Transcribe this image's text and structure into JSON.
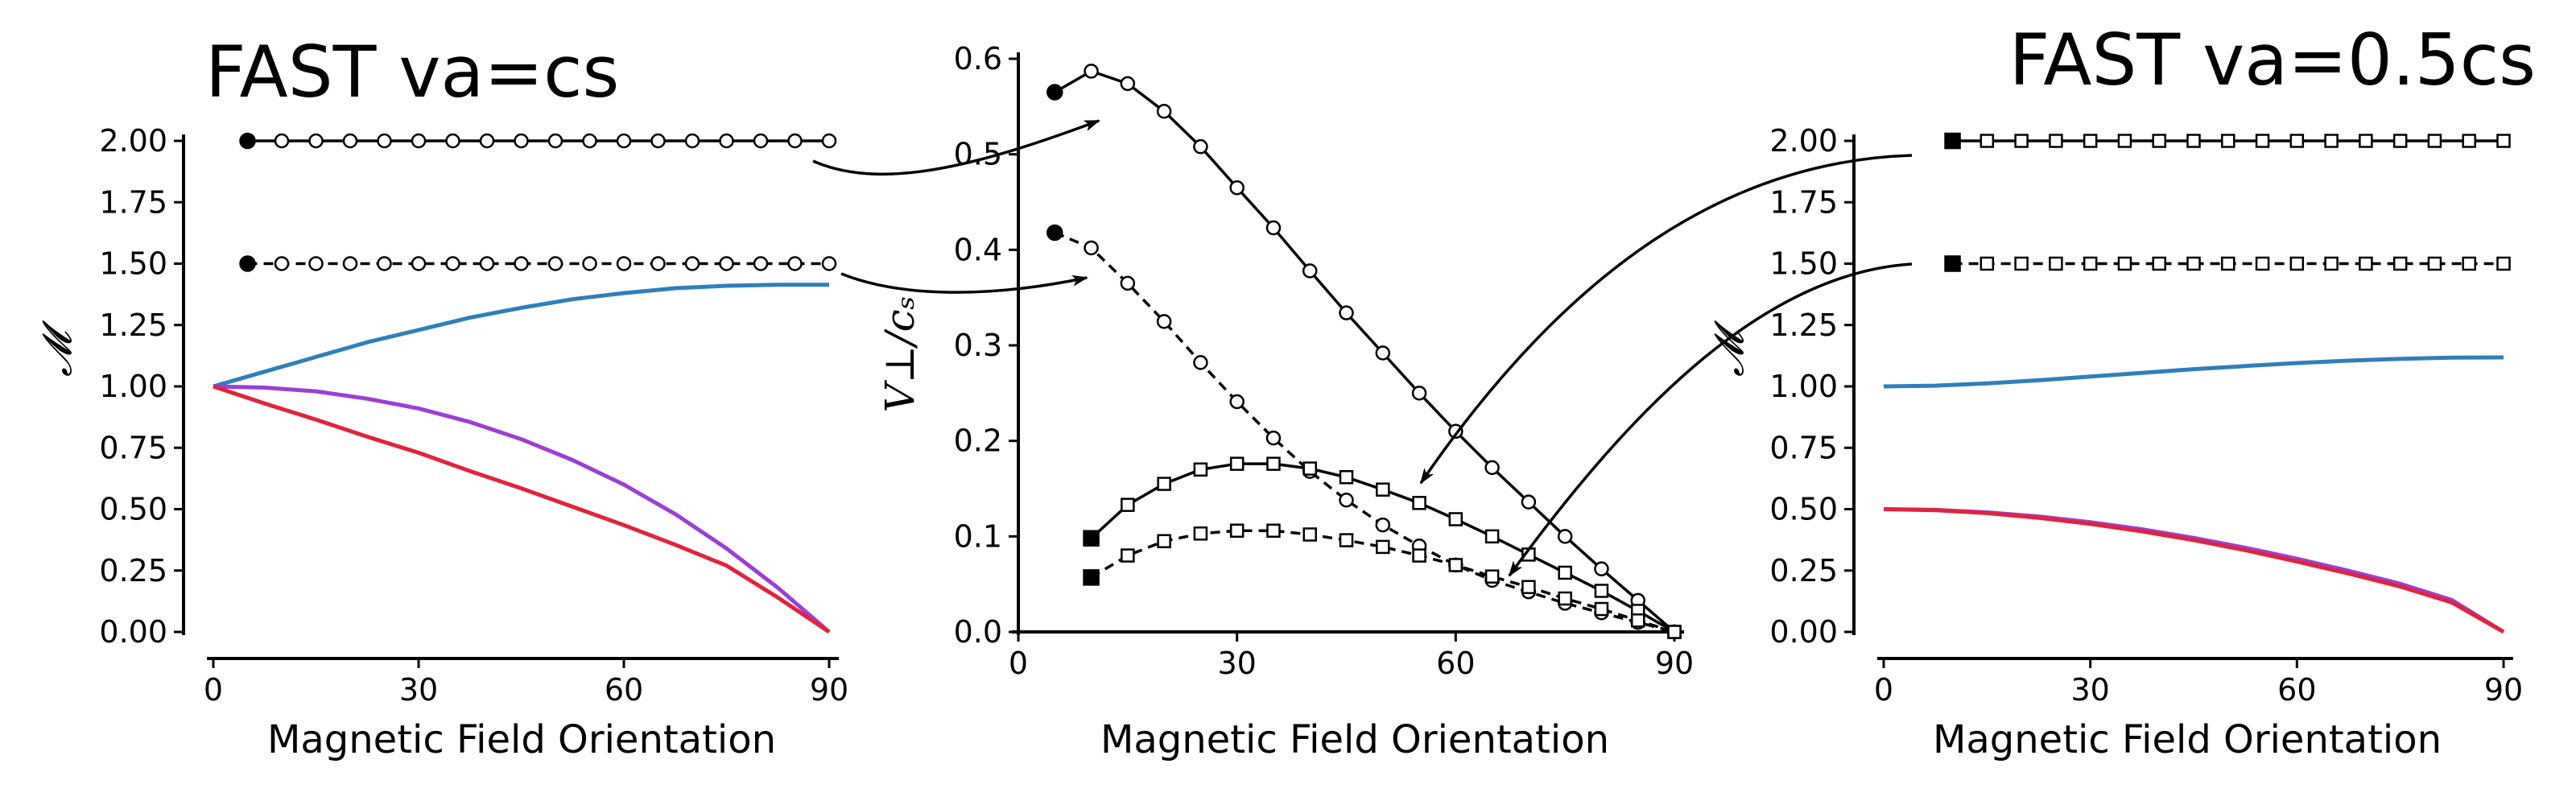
{
  "chart_data": [
    {
      "type": "line",
      "title": "FAST va=cs",
      "xlabel": "Magnetic Field Orientation",
      "ylabel": "𝓜",
      "xlim": [
        0,
        90
      ],
      "ylim": [
        0,
        2
      ],
      "xticks": [
        "0",
        "30",
        "60",
        "90"
      ],
      "yticks": [
        "0.00",
        "0.25",
        "0.50",
        "0.75",
        "1.00",
        "1.25",
        "1.50",
        "1.75",
        "2.00"
      ],
      "grid": false,
      "series": [
        {
          "x": [
            0,
            7.5,
            15,
            22.5,
            30,
            37.5,
            45,
            52.5,
            60,
            67.5,
            75,
            82.5,
            90
          ],
          "y": [
            1.0,
            1.06,
            1.12,
            1.18,
            1.23,
            1.28,
            1.32,
            1.355,
            1.38,
            1.4,
            1.41,
            1.414,
            1.414
          ],
          "color": "#2f7fba",
          "style": "solid"
        },
        {
          "x": [
            0,
            7.5,
            15,
            22.5,
            30,
            37.5,
            45,
            52.5,
            60,
            67.5,
            75,
            82.5,
            90
          ],
          "y": [
            1.0,
            0.995,
            0.98,
            0.95,
            0.91,
            0.855,
            0.785,
            0.7,
            0.6,
            0.48,
            0.34,
            0.18,
            0.0
          ],
          "color": "#9b3fd6",
          "style": "solid"
        },
        {
          "x": [
            0,
            7.5,
            15,
            22.5,
            30,
            37.5,
            45,
            52.5,
            60,
            67.5,
            75,
            82.5,
            90
          ],
          "y": [
            1.0,
            0.93,
            0.865,
            0.795,
            0.73,
            0.655,
            0.585,
            0.51,
            0.435,
            0.355,
            0.27,
            0.14,
            0.0
          ],
          "color": "#e0243c",
          "style": "solid"
        },
        {
          "x": [
            5,
            10,
            15,
            20,
            25,
            30,
            35,
            40,
            45,
            50,
            55,
            60,
            65,
            70,
            75,
            80,
            85,
            90
          ],
          "y": [
            2.0,
            2.0,
            2.0,
            2.0,
            2.0,
            2.0,
            2.0,
            2.0,
            2.0,
            2.0,
            2.0,
            2.0,
            2.0,
            2.0,
            2.0,
            2.0,
            2.0,
            2.0
          ],
          "color": "#000000",
          "style": "solid",
          "marker": "circle"
        },
        {
          "x": [
            5,
            10,
            15,
            20,
            25,
            30,
            35,
            40,
            45,
            50,
            55,
            60,
            65,
            70,
            75,
            80,
            85,
            90
          ],
          "y": [
            1.5,
            1.5,
            1.5,
            1.5,
            1.5,
            1.5,
            1.5,
            1.5,
            1.5,
            1.5,
            1.5,
            1.5,
            1.5,
            1.5,
            1.5,
            1.5,
            1.5,
            1.5
          ],
          "color": "#000000",
          "style": "dashed",
          "marker": "circle"
        }
      ]
    },
    {
      "type": "line",
      "title": "",
      "xlabel": "Magnetic Field Orientation",
      "ylabel": "V⊥/cₛ",
      "xlim": [
        0,
        90
      ],
      "ylim": [
        0,
        0.6
      ],
      "xticks": [
        "0",
        "30",
        "60",
        "90"
      ],
      "yticks": [
        "0.0",
        "0.1",
        "0.2",
        "0.3",
        "0.4",
        "0.5",
        "0.6"
      ],
      "grid": false,
      "series": [
        {
          "x": [
            5,
            10,
            15,
            20,
            25,
            30,
            35,
            40,
            45,
            50,
            55,
            60,
            65,
            70,
            75,
            80,
            85,
            90
          ],
          "y": [
            0.565,
            0.587,
            0.574,
            0.545,
            0.508,
            0.465,
            0.423,
            0.378,
            0.334,
            0.292,
            0.25,
            0.21,
            0.172,
            0.136,
            0.1,
            0.066,
            0.033,
            0.0
          ],
          "color": "#000000",
          "style": "solid",
          "marker": "circle"
        },
        {
          "x": [
            5,
            10,
            15,
            20,
            25,
            30,
            35,
            40,
            45,
            50,
            55,
            60,
            65,
            70,
            75,
            80,
            85,
            90
          ],
          "y": [
            0.418,
            0.402,
            0.365,
            0.325,
            0.282,
            0.241,
            0.203,
            0.168,
            0.138,
            0.112,
            0.09,
            0.07,
            0.054,
            0.042,
            0.03,
            0.02,
            0.01,
            0.0
          ],
          "color": "#000000",
          "style": "dashed",
          "marker": "circle"
        },
        {
          "x": [
            10,
            15,
            20,
            25,
            30,
            35,
            40,
            45,
            50,
            55,
            60,
            65,
            70,
            75,
            80,
            85,
            90
          ],
          "y": [
            0.098,
            0.133,
            0.155,
            0.17,
            0.176,
            0.176,
            0.171,
            0.162,
            0.149,
            0.135,
            0.118,
            0.1,
            0.081,
            0.062,
            0.043,
            0.022,
            0.0
          ],
          "color": "#000000",
          "style": "solid",
          "marker": "square"
        },
        {
          "x": [
            10,
            15,
            20,
            25,
            30,
            35,
            40,
            45,
            50,
            55,
            60,
            65,
            70,
            75,
            80,
            85,
            90
          ],
          "y": [
            0.057,
            0.08,
            0.095,
            0.103,
            0.106,
            0.106,
            0.102,
            0.096,
            0.089,
            0.08,
            0.07,
            0.058,
            0.047,
            0.035,
            0.024,
            0.012,
            0.0
          ],
          "color": "#000000",
          "style": "dashed",
          "marker": "square"
        }
      ]
    },
    {
      "type": "line",
      "title": "FAST va=0.5cs",
      "xlabel": "Magnetic Field Orientation",
      "ylabel": "𝓜",
      "xlim": [
        0,
        90
      ],
      "ylim": [
        0,
        2
      ],
      "xticks": [
        "0",
        "30",
        "60",
        "90"
      ],
      "yticks": [
        "0.00",
        "0.25",
        "0.50",
        "0.75",
        "1.00",
        "1.25",
        "1.50",
        "1.75",
        "2.00"
      ],
      "grid": false,
      "series": [
        {
          "x": [
            0,
            7.5,
            15,
            22.5,
            30,
            37.5,
            45,
            52.5,
            60,
            67.5,
            75,
            82.5,
            90
          ],
          "y": [
            1.0,
            1.003,
            1.012,
            1.025,
            1.04,
            1.055,
            1.07,
            1.083,
            1.095,
            1.105,
            1.112,
            1.117,
            1.118
          ],
          "color": "#2f7fba",
          "style": "solid"
        },
        {
          "x": [
            0,
            7.5,
            15,
            22.5,
            30,
            37.5,
            45,
            52.5,
            60,
            67.5,
            75,
            82.5,
            90
          ],
          "y": [
            0.5,
            0.497,
            0.487,
            0.47,
            0.447,
            0.418,
            0.383,
            0.343,
            0.298,
            0.249,
            0.196,
            0.13,
            0.0
          ],
          "color": "#9b3fd6",
          "style": "solid"
        },
        {
          "x": [
            0,
            7.5,
            15,
            22.5,
            30,
            37.5,
            45,
            52.5,
            60,
            67.5,
            75,
            82.5,
            90
          ],
          "y": [
            0.5,
            0.496,
            0.484,
            0.465,
            0.44,
            0.41,
            0.374,
            0.333,
            0.287,
            0.238,
            0.185,
            0.12,
            0.0
          ],
          "color": "#e0243c",
          "style": "solid"
        },
        {
          "x": [
            10,
            15,
            20,
            25,
            30,
            35,
            40,
            45,
            50,
            55,
            60,
            65,
            70,
            75,
            80,
            85,
            90
          ],
          "y": [
            2.0,
            2.0,
            2.0,
            2.0,
            2.0,
            2.0,
            2.0,
            2.0,
            2.0,
            2.0,
            2.0,
            2.0,
            2.0,
            2.0,
            2.0,
            2.0,
            2.0
          ],
          "color": "#000000",
          "style": "solid",
          "marker": "square"
        },
        {
          "x": [
            10,
            15,
            20,
            25,
            30,
            35,
            40,
            45,
            50,
            55,
            60,
            65,
            70,
            75,
            80,
            85,
            90
          ],
          "y": [
            1.5,
            1.5,
            1.5,
            1.5,
            1.5,
            1.5,
            1.5,
            1.5,
            1.5,
            1.5,
            1.5,
            1.5,
            1.5,
            1.5,
            1.5,
            1.5,
            1.5
          ],
          "color": "#000000",
          "style": "dashed",
          "marker": "square"
        }
      ]
    }
  ]
}
